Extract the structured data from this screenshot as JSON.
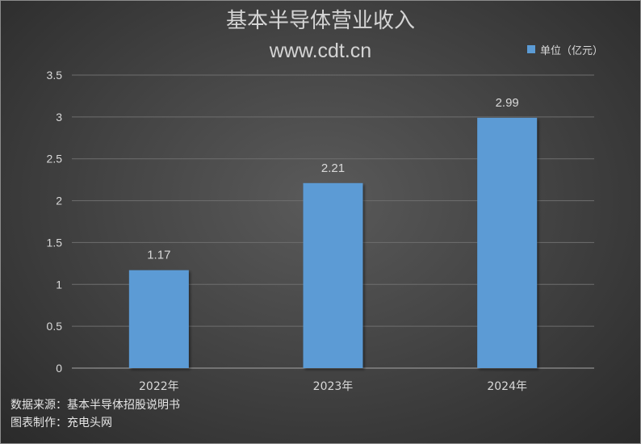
{
  "title": "基本半导体营业收入",
  "subtitle": "www.cdt.cn",
  "legend": {
    "label": "单位（亿元）",
    "color": "#5b9bd5"
  },
  "footer": {
    "source": "数据来源：基本半导体招股说明书",
    "made_by": "图表制作：充电头网"
  },
  "chart_data": {
    "type": "bar",
    "title": "基本半导体营业收入",
    "categories": [
      "2022年",
      "2023年",
      "2024年"
    ],
    "series": [
      {
        "name": "单位（亿元）",
        "values": [
          1.17,
          2.21,
          2.99
        ],
        "color": "#5b9bd5"
      }
    ],
    "data_labels": [
      "1.17",
      "2.21",
      "2.99"
    ],
    "yticks": [
      "0",
      "0.5",
      "1",
      "1.5",
      "2",
      "2.5",
      "3",
      "3.5"
    ],
    "ylim": [
      0,
      3.5
    ],
    "grid": true,
    "legend_position": "top-right"
  }
}
